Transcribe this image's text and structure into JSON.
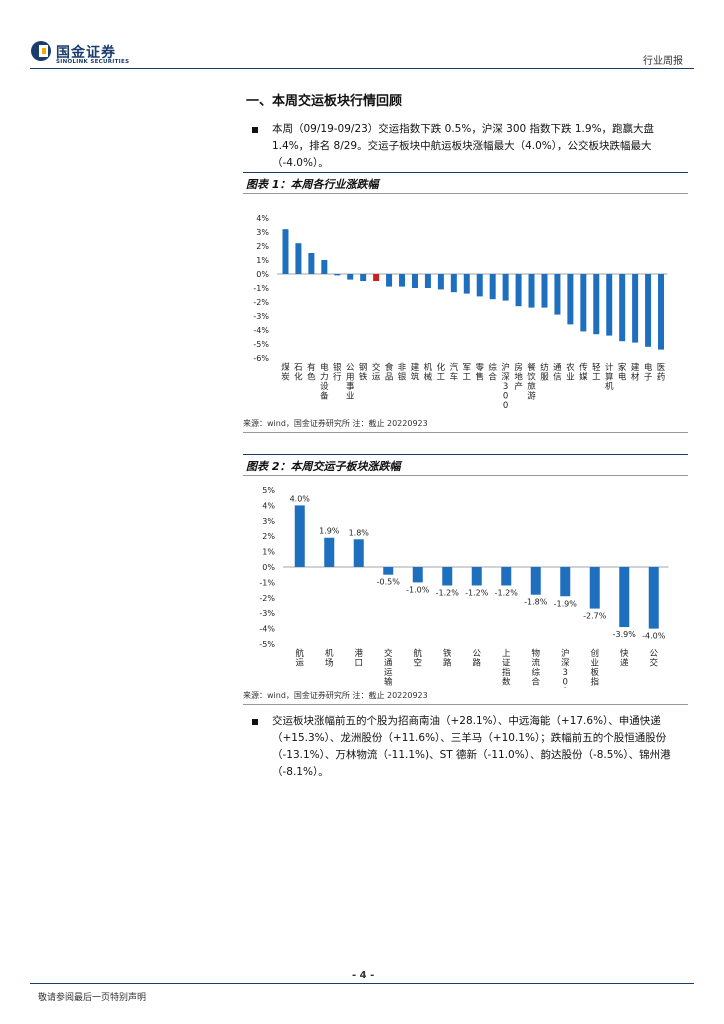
{
  "header": {
    "logo_cn": "国金证券",
    "logo_en": "SINOLINK SECURITIES",
    "report_type": "行业周报"
  },
  "section": {
    "title": "一、本周交运板块行情回顾"
  },
  "bullets": [
    "本周（09/19-09/23）交运指数下跌 0.5%，沪深 300 指数下跌 1.9%，跑赢大盘 1.4%，排名 8/29。交运子板块中航运板块涨幅最大（4.0%），公交板块跌幅最大（-4.0%）。",
    "交运板块涨幅前五的个股为招商南油（+28.1%）、中远海能（+17.6%）、申通快递（+15.3%）、龙洲股份（+11.6%）、三羊马（+10.1%）；跌幅前五的个股恒通股份（-13.1%）、万林物流（-11.1%)、ST 德新（-11.0%）、韵达股份（-8.5%）、锦州港（-8.1%）。"
  ],
  "figure1": {
    "title": "图表 1：本周各行业涨跌幅",
    "source": "来源：wind，国金证券研究所  注：截止 20220923"
  },
  "figure2": {
    "title": "图表 2：本周交运子板块涨跌幅",
    "source": "来源：wind，国金证券研究所  注：截止 20220923"
  },
  "footer": {
    "page": "- 4 -",
    "disclaimer": "敬请参阅最后一页特别声明"
  },
  "colors": {
    "bar": "#1f6fbf",
    "highlight": "#cc1f1f",
    "brand": "#1a3d6d"
  },
  "chart_data": [
    {
      "type": "bar",
      "title": "图表 1：本周各行业涨跌幅",
      "categories": [
        "煤炭",
        "石化",
        "有色",
        "电力设备",
        "银行",
        "公用事业",
        "钢铁",
        "交运",
        "食品",
        "非银",
        "建筑",
        "机械",
        "化工",
        "汽车",
        "军工",
        "零售",
        "综合",
        "沪深300",
        "房地产",
        "餐饮旅游",
        "纺服",
        "通信",
        "农业",
        "传媒",
        "轻工",
        "计算机",
        "家电",
        "建材",
        "电子",
        "医药"
      ],
      "values": [
        3.2,
        2.2,
        1.5,
        1.0,
        -0.1,
        -0.4,
        -0.5,
        -0.5,
        -0.9,
        -0.9,
        -1.0,
        -1.0,
        -1.1,
        -1.3,
        -1.4,
        -1.6,
        -1.8,
        -1.9,
        -2.3,
        -2.4,
        -2.4,
        -2.9,
        -3.6,
        -4.1,
        -4.3,
        -4.4,
        -4.8,
        -4.9,
        -5.2,
        -5.4
      ],
      "highlight": [
        "交运"
      ],
      "ylim": [
        -6,
        4
      ],
      "yticks": [
        "4%",
        "3%",
        "2%",
        "1%",
        "0%",
        "-1%",
        "-2%",
        "-3%",
        "-4%",
        "-5%",
        "-6%"
      ]
    },
    {
      "type": "bar",
      "title": "图表 2：本周交运子板块涨跌幅",
      "categories": [
        "航运",
        "机场",
        "港口",
        "交通运输",
        "航空",
        "铁路",
        "公路",
        "上证指数",
        "物流综合",
        "沪深300",
        "创业板指",
        "快递",
        "公交"
      ],
      "values": [
        4.0,
        1.9,
        1.8,
        -0.5,
        -1.0,
        -1.2,
        -1.2,
        -1.2,
        -1.8,
        -1.9,
        -2.7,
        -3.9,
        -4.0
      ],
      "labels": [
        "4.0%",
        "1.9%",
        "1.8%",
        "-0.5%",
        "-1.0%",
        "-1.2%",
        "-1.2%",
        "-1.2%",
        "-1.8%",
        "-1.9%",
        "-2.7%",
        "-3.9%",
        "-4.0%"
      ],
      "ylim": [
        -5,
        5
      ],
      "yticks": [
        "5%",
        "4%",
        "3%",
        "2%",
        "1%",
        "0%",
        "-1%",
        "-2%",
        "-3%",
        "-4%",
        "-5%"
      ]
    }
  ]
}
